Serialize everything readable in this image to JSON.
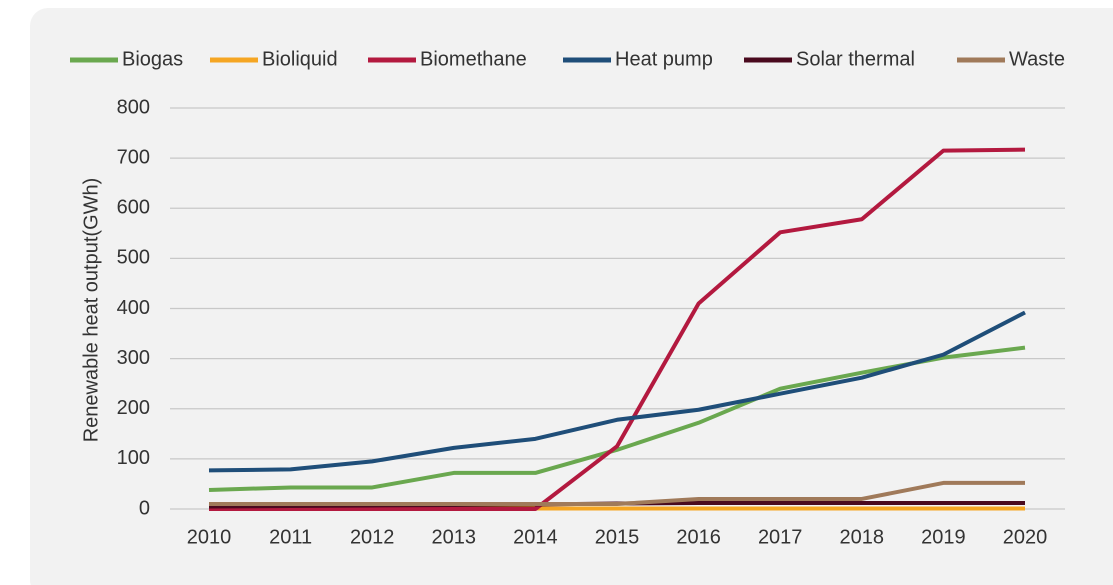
{
  "chart_data": {
    "type": "line",
    "y_label": "Renewable heat output(GWh)",
    "categories": [
      "2010",
      "2011",
      "2012",
      "2013",
      "2014",
      "2015",
      "2016",
      "2017",
      "2018",
      "2019",
      "2020"
    ],
    "series": [
      {
        "name": "Biogas",
        "color": "#6aa84f",
        "values": [
          38,
          43,
          43,
          72,
          72,
          118,
          172,
          240,
          272,
          302,
          322
        ]
      },
      {
        "name": "Bioliquid",
        "color": "#f5a623",
        "values": [
          1,
          1,
          1,
          1,
          1,
          1,
          1,
          1,
          1,
          1,
          1
        ]
      },
      {
        "name": "Biomethane",
        "color": "#b3193f",
        "values": [
          0,
          0,
          0,
          0,
          0,
          125,
          410,
          552,
          578,
          715,
          717
        ]
      },
      {
        "name": "Heat pump",
        "color": "#1f4e79",
        "values": [
          77,
          79,
          95,
          122,
          140,
          178,
          198,
          230,
          262,
          308,
          392
        ]
      },
      {
        "name": "Solar thermal",
        "color": "#4a0a1e",
        "values": [
          5,
          6,
          7,
          8,
          9,
          11,
          12,
          12,
          12,
          12,
          12
        ]
      },
      {
        "name": "Waste",
        "color": "#a07a5a",
        "values": [
          10,
          10,
          10,
          10,
          10,
          10,
          20,
          20,
          20,
          52,
          52
        ]
      }
    ],
    "ylim": [
      0,
      800
    ],
    "yticks": [
      0,
      100,
      200,
      300,
      400,
      500,
      600,
      700,
      800
    ],
    "grid": true,
    "legend": "top"
  }
}
